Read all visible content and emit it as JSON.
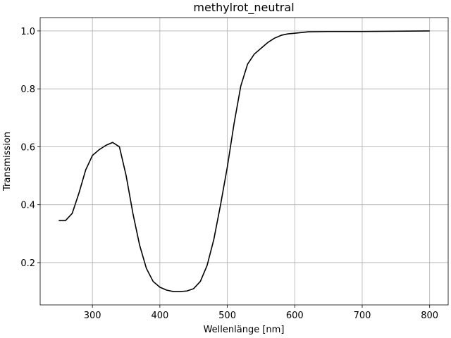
{
  "chart_data": {
    "type": "line",
    "title": "methylrot_neutral",
    "xlabel": "Wellenlänge [nm]",
    "ylabel": "Transmission",
    "x": [
      250,
      260,
      270,
      280,
      290,
      300,
      310,
      320,
      330,
      340,
      350,
      360,
      370,
      380,
      390,
      400,
      410,
      420,
      430,
      440,
      450,
      460,
      470,
      480,
      490,
      500,
      510,
      520,
      530,
      540,
      550,
      560,
      570,
      580,
      590,
      600,
      620,
      650,
      700,
      750,
      800
    ],
    "series": [
      {
        "name": "methylrot_neutral",
        "color": "#000000",
        "values": [
          0.345,
          0.345,
          0.37,
          0.44,
          0.52,
          0.57,
          0.59,
          0.605,
          0.615,
          0.6,
          0.5,
          0.37,
          0.26,
          0.18,
          0.135,
          0.115,
          0.105,
          0.1,
          0.1,
          0.102,
          0.11,
          0.135,
          0.19,
          0.28,
          0.4,
          0.53,
          0.68,
          0.81,
          0.885,
          0.92,
          0.94,
          0.96,
          0.975,
          0.985,
          0.99,
          0.992,
          0.997,
          0.998,
          0.998,
          0.999,
          1.0
        ]
      }
    ],
    "xlim": [
      222.5,
      827.5
    ],
    "xticks": [
      300,
      400,
      500,
      600,
      700,
      800
    ],
    "ylim": [
      0.054,
      1.046
    ],
    "yticks": [
      0.2,
      0.4,
      0.6,
      0.8,
      {
        "value": 1.0,
        "label": "1.0"
      }
    ],
    "grid": true
  }
}
